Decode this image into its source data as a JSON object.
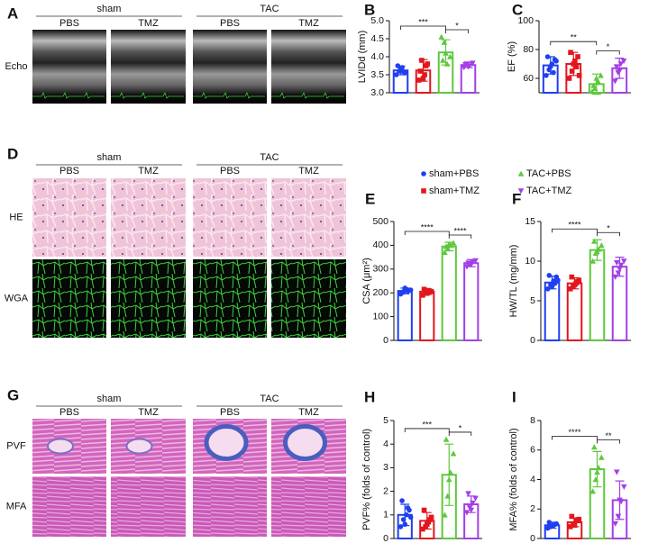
{
  "panels": {
    "A": {
      "label": "A",
      "groups": [
        "sham",
        "TAC"
      ],
      "columns": [
        "PBS",
        "TMZ",
        "PBS",
        "TMZ"
      ],
      "rows": [
        "Echo"
      ]
    },
    "D": {
      "label": "D",
      "groups": [
        "sham",
        "TAC"
      ],
      "columns": [
        "PBS",
        "TMZ",
        "PBS",
        "TMZ"
      ],
      "rows": [
        "HE",
        "WGA"
      ]
    },
    "G": {
      "label": "G",
      "groups": [
        "sham",
        "TAC"
      ],
      "columns": [
        "PBS",
        "TMZ",
        "PBS",
        "TMZ"
      ],
      "rows": [
        "PVF",
        "MFA"
      ]
    }
  },
  "legend": [
    {
      "name": "sham+PBS",
      "color": "#1f3ff0",
      "marker": "circle"
    },
    {
      "name": "sham+TMZ",
      "color": "#e3161d",
      "marker": "square"
    },
    {
      "name": "TAC+PBS",
      "color": "#5ec83c",
      "marker": "triangle-up"
    },
    {
      "name": "TAC+TMZ",
      "color": "#a23fe6",
      "marker": "triangle-down"
    }
  ],
  "chart_data": [
    {
      "type": "bar",
      "panel": "B",
      "ylabel": "LVIDd (mm)",
      "categories": [
        null,
        null,
        null,
        null
      ],
      "values": [
        3.62,
        3.62,
        4.12,
        3.77
      ],
      "errors": [
        0.12,
        0.3,
        0.35,
        0.07
      ],
      "points": [
        [
          3.5,
          3.6,
          3.7,
          3.55,
          3.75,
          3.65,
          3.58
        ],
        [
          3.35,
          3.9,
          3.5,
          3.8,
          3.6,
          3.4,
          3.75
        ],
        [
          4.55,
          4.4,
          3.8,
          4.0,
          3.9,
          4.1
        ],
        [
          3.7,
          3.8,
          3.75,
          3.82,
          3.78,
          3.72
        ]
      ],
      "ylim": [
        3,
        5
      ],
      "yticks": [
        {
          "value": 3,
          "label": "3.0"
        },
        3.5,
        {
          "value": 4,
          "label": "4.0"
        },
        4.5,
        {
          "value": 5,
          "label": "5.0"
        }
      ],
      "brackets": [
        {
          "label": "***",
          "groups": [
            0,
            2
          ]
        },
        {
          "label": "*",
          "groups": [
            2,
            3
          ]
        }
      ]
    },
    {
      "type": "bar",
      "panel": "C",
      "ylabel": "EF (%)",
      "categories": [
        null,
        null,
        null,
        null
      ],
      "values": [
        69,
        70,
        56,
        67
      ],
      "errors": [
        6,
        8,
        7,
        7
      ],
      "points": [
        [
          62,
          66,
          70,
          73,
          75,
          68,
          64,
          72
        ],
        [
          60,
          65,
          72,
          75,
          78,
          70,
          68,
          62
        ],
        [
          51,
          53,
          58,
          62,
          55,
          60
        ],
        [
          58,
          64,
          70,
          72,
          68,
          65
        ]
      ],
      "ylim": [
        50,
        100
      ],
      "yticks": [
        60,
        80,
        100
      ],
      "brackets": [
        {
          "label": "**",
          "groups": [
            0,
            2
          ]
        },
        {
          "label": "*",
          "groups": [
            2,
            3
          ]
        }
      ]
    },
    {
      "type": "bar",
      "panel": "E",
      "ylabel": "CSA (μm²)",
      "categories": [
        null,
        null,
        null,
        null
      ],
      "values": [
        208,
        205,
        395,
        325
      ],
      "errors": [
        12,
        12,
        18,
        15
      ],
      "points": [
        [
          195,
          205,
          215,
          210,
          200,
          220,
          208,
          212
        ],
        [
          190,
          200,
          210,
          205,
          215,
          198,
          207
        ],
        [
          370,
          385,
          400,
          410,
          395,
          405
        ],
        [
          310,
          320,
          330,
          335,
          325,
          318
        ]
      ],
      "ylim": [
        0,
        500
      ],
      "yticks": [
        0,
        100,
        200,
        300,
        400,
        500
      ],
      "brackets": [
        {
          "label": "****",
          "groups": [
            0,
            2
          ]
        },
        {
          "label": "****",
          "groups": [
            2,
            3
          ]
        }
      ]
    },
    {
      "type": "bar",
      "panel": "F",
      "ylabel": "HW/TL (mg/mm)",
      "categories": [
        null,
        null,
        null,
        null
      ],
      "values": [
        7.3,
        7.2,
        11.4,
        9.3
      ],
      "errors": [
        0.8,
        0.7,
        1.3,
        1.2
      ],
      "points": [
        [
          6.5,
          7,
          7.5,
          8,
          8.2,
          6.8,
          7.2,
          7.6
        ],
        [
          6.5,
          6.8,
          7.2,
          7.6,
          8,
          7,
          7.4
        ],
        [
          10,
          11,
          11.5,
          12,
          12.5,
          11.2
        ],
        [
          8,
          8.5,
          9.5,
          10,
          9.8,
          9
        ]
      ],
      "ylim": [
        0,
        15
      ],
      "yticks": [
        0,
        5,
        10,
        15
      ],
      "brackets": [
        {
          "label": "****",
          "groups": [
            0,
            2
          ]
        },
        {
          "label": "*",
          "groups": [
            2,
            3
          ]
        }
      ]
    },
    {
      "type": "bar",
      "panel": "H",
      "ylabel": "PVF% (folds of control)",
      "categories": [
        null,
        null,
        null,
        null
      ],
      "values": [
        1.0,
        0.75,
        2.7,
        1.45
      ],
      "errors": [
        0.45,
        0.35,
        1.3,
        0.35
      ],
      "points": [
        [
          0.5,
          0.8,
          1,
          1.2,
          1.6,
          0.6,
          1.3,
          0.9
        ],
        [
          0.4,
          0.5,
          0.7,
          0.9,
          1.2,
          0.6,
          0.8
        ],
        [
          1,
          1.8,
          2.8,
          3.6,
          4.2,
          2.5
        ],
        [
          1.1,
          1.3,
          1.5,
          1.7,
          1.9,
          1.2
        ]
      ],
      "ylim": [
        0,
        5
      ],
      "yticks": [
        0,
        1,
        2,
        3,
        4,
        5
      ],
      "brackets": [
        {
          "label": "***",
          "groups": [
            0,
            2
          ]
        },
        {
          "label": "*",
          "groups": [
            2,
            3
          ]
        }
      ]
    },
    {
      "type": "bar",
      "panel": "I",
      "ylabel": "MFA% (folds of control)",
      "categories": [
        null,
        null,
        null,
        null
      ],
      "values": [
        0.9,
        1.1,
        4.7,
        2.6
      ],
      "errors": [
        0.2,
        0.3,
        1.2,
        1.3
      ],
      "points": [
        [
          0.7,
          0.8,
          0.9,
          1,
          1.1,
          0.85,
          0.95
        ],
        [
          0.8,
          1,
          1.2,
          1.3,
          1.5,
          0.9
        ],
        [
          3.2,
          4,
          4.8,
          5.5,
          6.2,
          4.5
        ],
        [
          1,
          1.5,
          2.5,
          3.5,
          4.5,
          2.6
        ]
      ],
      "ylim": [
        0,
        8
      ],
      "yticks": [
        0,
        2,
        4,
        6,
        8
      ],
      "brackets": [
        {
          "label": "****",
          "groups": [
            0,
            2
          ]
        },
        {
          "label": "**",
          "groups": [
            2,
            3
          ]
        }
      ]
    }
  ]
}
